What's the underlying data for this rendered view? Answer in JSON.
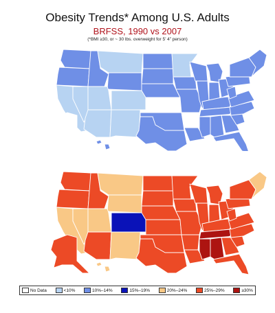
{
  "title": "Obesity Trends* Among U.S. Adults",
  "subtitle": "BRFSS, 1990 vs 2007",
  "note": "(*BMI ≥30, or ~ 30 lbs. overweight for 5’ 4” person)",
  "colors": {
    "nodata": "#ffffff",
    "lt10": "#b7d3f2",
    "r10_14": "#6f8fe6",
    "r15_19": "#0a12b8",
    "r20_24": "#f9c886",
    "r25_29": "#ec4a26",
    "ge30": "#ad1411"
  },
  "legend": [
    {
      "key": "nodata",
      "label": "No Data"
    },
    {
      "key": "lt10",
      "label": "<10%"
    },
    {
      "key": "r10_14",
      "label": "10%–14%"
    },
    {
      "key": "r15_19",
      "label": "15%–19%"
    },
    {
      "key": "r20_24",
      "label": "20%–24%"
    },
    {
      "key": "r25_29",
      "label": "25%–29%"
    },
    {
      "key": "ge30",
      "label": "≥30%"
    }
  ],
  "maps": [
    {
      "year": 1990,
      "default": "r10_14",
      "states": {
        "WA": "r10_14",
        "OR": "r10_14",
        "CA": "lt10",
        "NV": "lt10",
        "ID": "r10_14",
        "MT": "lt10",
        "WY": "r10_14",
        "UT": "lt10",
        "AZ": "lt10",
        "NM": "lt10",
        "CO": "lt10",
        "ND": "r10_14",
        "SD": "r10_14",
        "NE": "r10_14",
        "KS": "nodata",
        "OK": "r10_14",
        "TX": "r10_14",
        "MN": "lt10",
        "IA": "r10_14",
        "MO": "r10_14",
        "AR": "nodata",
        "LA": "r10_14",
        "WI": "r10_14",
        "IL": "r10_14",
        "MI": "r10_14",
        "IN": "r10_14",
        "OH": "r10_14",
        "KY": "r10_14",
        "TN": "r10_14",
        "MS": "r10_14",
        "AL": "r10_14",
        "GA": "r10_14",
        "FL": "r10_14",
        "SC": "r10_14",
        "NC": "r10_14",
        "VA": "r10_14",
        "WV": "r10_14",
        "PA": "r10_14",
        "NY": "r10_14",
        "NE_REG": "r10_14",
        "AK": "nodata",
        "HI": "r10_14"
      }
    },
    {
      "year": 2007,
      "default": "r25_29",
      "states": {
        "WA": "r25_29",
        "OR": "r25_29",
        "CA": "r20_24",
        "NV": "r20_24",
        "ID": "r25_29",
        "MT": "r20_24",
        "WY": "r20_24",
        "UT": "r20_24",
        "AZ": "r25_29",
        "NM": "r20_24",
        "CO": "r15_19",
        "ND": "r25_29",
        "SD": "r25_29",
        "NE": "r25_29",
        "KS": "r25_29",
        "OK": "r25_29",
        "TX": "r25_29",
        "MN": "r25_29",
        "IA": "r25_29",
        "MO": "r25_29",
        "AR": "r25_29",
        "LA": "r25_29",
        "WI": "r25_29",
        "IL": "r25_29",
        "MI": "r25_29",
        "IN": "r25_29",
        "OH": "r25_29",
        "KY": "r25_29",
        "TN": "ge30",
        "MS": "ge30",
        "AL": "ge30",
        "GA": "r25_29",
        "FL": "r25_29",
        "SC": "r25_29",
        "NC": "r25_29",
        "VA": "r25_29",
        "WV": "r25_29",
        "PA": "r25_29",
        "NY": "r25_29",
        "NE_REG": "r20_24",
        "AK": "r25_29",
        "HI": "r20_24"
      }
    }
  ]
}
